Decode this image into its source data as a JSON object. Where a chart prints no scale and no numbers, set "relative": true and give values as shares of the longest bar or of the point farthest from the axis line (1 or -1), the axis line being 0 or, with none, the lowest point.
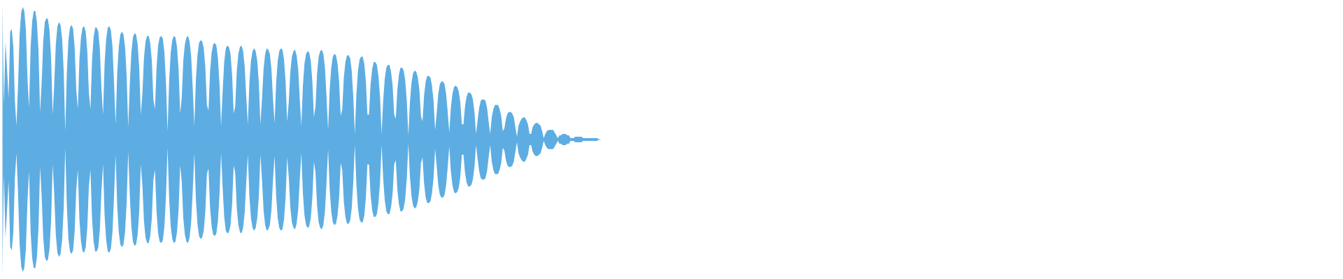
{
  "chart_data": {
    "type": "area",
    "relative": true,
    "categories": [
      null,
      null,
      null,
      null,
      null,
      null,
      null,
      null,
      null,
      null,
      null,
      null,
      null,
      null,
      null,
      null,
      null,
      null,
      null,
      null,
      null,
      null,
      null,
      null,
      null,
      null,
      null,
      null,
      null,
      null,
      null,
      null,
      null,
      null,
      null,
      null,
      null,
      null,
      null,
      null,
      null,
      null,
      null,
      null,
      null,
      null,
      null,
      null,
      null,
      null,
      null,
      null,
      null,
      null,
      null,
      null,
      null,
      null,
      null,
      null,
      null,
      null,
      null,
      null,
      null,
      null,
      null,
      null,
      null,
      null,
      null,
      null,
      null,
      null,
      null,
      null,
      null,
      null,
      null,
      null,
      null,
      null,
      null,
      null,
      null,
      null,
      null,
      null,
      null,
      null,
      null,
      null,
      null,
      null,
      null,
      null,
      null,
      null,
      null,
      null,
      null,
      null,
      null,
      null,
      null,
      null,
      null,
      null,
      null,
      null,
      null,
      null,
      null,
      null,
      null,
      null,
      null,
      null,
      null,
      null,
      null,
      null,
      null,
      null,
      null,
      null,
      null,
      null,
      null,
      null,
      null,
      null,
      null,
      null,
      null,
      null,
      null,
      null,
      null,
      null,
      null,
      null,
      null,
      null,
      null,
      null,
      null,
      null,
      null,
      null,
      null,
      null,
      null,
      null,
      null,
      null,
      null,
      null,
      null,
      null,
      null,
      null,
      null,
      null,
      null,
      null,
      null,
      null,
      null,
      null,
      null,
      null,
      null,
      null,
      null,
      null,
      null,
      null,
      null,
      null,
      null,
      null,
      null,
      null,
      null,
      null,
      null,
      null,
      null,
      null,
      null,
      null,
      null,
      null,
      null,
      null,
      null,
      null,
      null,
      null,
      null,
      null,
      null,
      null,
      null,
      null,
      null,
      null,
      null,
      null,
      null,
      null,
      null,
      null,
      null,
      null,
      null,
      null,
      null,
      null,
      null,
      null,
      null,
      null,
      null,
      null,
      null,
      null,
      null,
      null,
      null,
      null,
      null,
      null,
      null,
      null,
      null,
      null,
      null,
      null,
      null,
      null,
      null,
      null,
      null,
      null,
      null,
      null,
      null,
      null,
      null,
      null,
      null,
      null,
      null,
      null,
      null,
      null,
      null,
      null,
      null,
      null,
      null,
      null,
      null,
      null,
      null,
      null,
      null,
      null,
      null,
      null,
      null,
      null,
      null,
      null,
      null,
      null,
      null,
      null,
      null,
      null,
      null,
      null,
      null,
      null,
      null,
      null,
      null,
      null,
      null,
      null,
      null,
      null,
      null,
      null,
      null,
      null,
      null,
      null,
      null,
      null,
      null,
      null,
      null,
      null,
      null,
      null,
      null,
      null,
      null,
      null,
      null,
      null,
      null,
      null,
      null,
      null,
      null,
      null,
      null,
      null,
      null,
      null,
      null,
      null,
      null,
      null,
      null,
      null,
      null,
      null,
      null,
      null,
      null,
      null,
      null,
      null,
      null,
      null,
      null,
      null,
      null,
      null,
      null,
      null,
      null,
      null,
      null,
      null,
      null,
      null,
      null,
      null,
      null,
      null,
      null,
      null,
      null,
      null,
      null,
      null,
      null,
      null,
      null,
      null,
      null,
      null,
      null,
      null,
      null,
      null,
      null,
      null,
      null,
      null,
      null,
      null,
      null,
      null,
      null
    ],
    "ref_lines": [
      {
        "axis": "y",
        "value": 0,
        "color": "#5dade2"
      }
    ],
    "series": [
      {
        "color": "#5dade2",
        "values": [
          1,
          0.25,
          0.71,
          0.51,
          0.3,
          0.78,
          0.8,
          0.67,
          0.28,
          0.1,
          0.39,
          0.76,
          0.92,
          0.96,
          0.93,
          0.79,
          0.44,
          0.23,
          0.67,
          0.86,
          0.93,
          0.93,
          0.85,
          0.64,
          0.2,
          0.41,
          0.71,
          0.85,
          0.88,
          0.87,
          0.79,
          0.59,
          0.18,
          0.4,
          0.69,
          0.82,
          0.85,
          0.83,
          0.73,
          0.5,
          0.06,
          0.48,
          0.72,
          0.81,
          0.83,
          0.8,
          0.66,
          0.36,
          0.22,
          0.58,
          0.74,
          0.81,
          0.82,
          0.78,
          0.64,
          0.34,
          0.22,
          0.57,
          0.74,
          0.81,
          0.81,
          0.78,
          0.65,
          0.37,
          0.18,
          0.55,
          0.73,
          0.81,
          0.82,
          0.79,
          0.67,
          0.41,
          0.11,
          0.48,
          0.67,
          0.76,
          0.78,
          0.76,
          0.67,
          0.46,
          0.09,
          0.4,
          0.63,
          0.74,
          0.77,
          0.76,
          0.69,
          0.52,
          0.18,
          0.33,
          0.59,
          0.71,
          0.75,
          0.75,
          0.7,
          0.57,
          0.29,
          0.22,
          0.52,
          0.68,
          0.74,
          0.75,
          0.73,
          0.63,
          0.41,
          0.06,
          0.42,
          0.63,
          0.72,
          0.75,
          0.74,
          0.67,
          0.51,
          0.19,
          0.3,
          0.57,
          0.69,
          0.74,
          0.75,
          0.71,
          0.6,
          0.37,
          0.1,
          0.43,
          0.61,
          0.7,
          0.72,
          0.71,
          0.66,
          0.52,
          0.25,
          0.21,
          0.49,
          0.63,
          0.69,
          0.7,
          0.68,
          0.59,
          0.4,
          0.1,
          0.35,
          0.56,
          0.66,
          0.68,
          0.67,
          0.62,
          0.47,
          0.19,
          0.24,
          0.5,
          0.62,
          0.67,
          0.68,
          0.64,
          0.53,
          0.31,
          0.11,
          0.41,
          0.57,
          0.64,
          0.66,
          0.64,
          0.57,
          0.41,
          0.11,
          0.29,
          0.51,
          0.62,
          0.66,
          0.65,
          0.62,
          0.51,
          0.29,
          0.12,
          0.41,
          0.57,
          0.64,
          0.66,
          0.65,
          0.58,
          0.42,
          0.13,
          0.27,
          0.49,
          0.6,
          0.64,
          0.65,
          0.61,
          0.51,
          0.29,
          0.1,
          0.39,
          0.55,
          0.62,
          0.64,
          0.63,
          0.57,
          0.42,
          0.16,
          0.24,
          0.48,
          0.6,
          0.64,
          0.65,
          0.62,
          0.52,
          0.31,
          0.07,
          0.36,
          0.52,
          0.6,
          0.62,
          0.61,
          0.55,
          0.42,
          0.17,
          0.22,
          0.45,
          0.56,
          0.61,
          0.61,
          0.59,
          0.5,
          0.31,
          0.04,
          0.33,
          0.5,
          0.58,
          0.6,
          0.6,
          0.55,
          0.42,
          0.18,
          0.18,
          0.4,
          0.51,
          0.56,
          0.56,
          0.54,
          0.46,
          0.31,
          0.04,
          0.28,
          0.44,
          0.52,
          0.54,
          0.54,
          0.49,
          0.39,
          0.18,
          0.15,
          0.36,
          0.47,
          0.52,
          0.52,
          0.5,
          0.43,
          0.28,
          0.03,
          0.27,
          0.41,
          0.48,
          0.5,
          0.49,
          0.45,
          0.36,
          0.17,
          0.13,
          0.32,
          0.42,
          0.46,
          0.46,
          0.45,
          0.39,
          0.28,
          0.07,
          0.19,
          0.33,
          0.4,
          0.42,
          0.42,
          0.4,
          0.33,
          0.2,
          0.05,
          0.23,
          0.33,
          0.38,
          0.39,
          0.38,
          0.35,
          0.27,
          0.11,
          0.11,
          0.24,
          0.31,
          0.34,
          0.34,
          0.33,
          0.29,
          0.2,
          0.04,
          0.14,
          0.23,
          0.28,
          0.29,
          0.29,
          0.28,
          0.23,
          0.13,
          0.04,
          0.16,
          0.22,
          0.25,
          0.25,
          0.25,
          0.22,
          0.17,
          0.06,
          0.08,
          0.15,
          0.19,
          0.2,
          0.2,
          0.19,
          0.16,
          0.09,
          0.02,
          0.1,
          0.13,
          0.15,
          0.16,
          0.16,
          0.14,
          0.11,
          0.04,
          0.04,
          0.09,
          0.11,
          0.12,
          0.12,
          0.11,
          0.1,
          0.06,
          0.01,
          0.04,
          0.06,
          0.07,
          0.07,
          0.07,
          0.07,
          0.05,
          0.03,
          0.01,
          0.03,
          0.03,
          0.04,
          0.04,
          0.04,
          0.03,
          0.03,
          0.01,
          0.01,
          0.01,
          0.02,
          0.02,
          0.02,
          0.02,
          0.02,
          0.01,
          0.01,
          0.01,
          0.01,
          0.01,
          0.01,
          0.01,
          0.01,
          0.01,
          0.01,
          0,
          0
        ]
      },
      {
        "color": "#5dade2",
        "values": [
          -1,
          -0.25,
          -0.71,
          -0.51,
          -0.3,
          -0.78,
          -0.8,
          -0.67,
          -0.28,
          -0.1,
          -0.39,
          -0.76,
          -0.92,
          -0.96,
          -0.93,
          -0.79,
          -0.44,
          -0.23,
          -0.67,
          -0.86,
          -0.93,
          -0.93,
          -0.85,
          -0.64,
          -0.2,
          -0.41,
          -0.71,
          -0.85,
          -0.88,
          -0.87,
          -0.79,
          -0.59,
          -0.18,
          -0.4,
          -0.69,
          -0.82,
          -0.85,
          -0.83,
          -0.73,
          -0.5,
          -0.06,
          -0.48,
          -0.72,
          -0.81,
          -0.83,
          -0.8,
          -0.66,
          -0.36,
          -0.22,
          -0.58,
          -0.74,
          -0.81,
          -0.82,
          -0.78,
          -0.64,
          -0.34,
          -0.22,
          -0.57,
          -0.74,
          -0.81,
          -0.81,
          -0.78,
          -0.65,
          -0.37,
          -0.18,
          -0.55,
          -0.73,
          -0.81,
          -0.82,
          -0.79,
          -0.67,
          -0.41,
          -0.11,
          -0.48,
          -0.67,
          -0.76,
          -0.78,
          -0.76,
          -0.67,
          -0.46,
          -0.09,
          -0.4,
          -0.63,
          -0.74,
          -0.77,
          -0.76,
          -0.69,
          -0.52,
          -0.18,
          -0.33,
          -0.59,
          -0.71,
          -0.75,
          -0.75,
          -0.7,
          -0.57,
          -0.29,
          -0.22,
          -0.52,
          -0.68,
          -0.74,
          -0.75,
          -0.73,
          -0.63,
          -0.41,
          -0.06,
          -0.42,
          -0.63,
          -0.72,
          -0.75,
          -0.74,
          -0.67,
          -0.51,
          -0.19,
          -0.3,
          -0.57,
          -0.69,
          -0.74,
          -0.75,
          -0.71,
          -0.6,
          -0.37,
          -0.1,
          -0.43,
          -0.61,
          -0.7,
          -0.72,
          -0.71,
          -0.66,
          -0.52,
          -0.25,
          -0.21,
          -0.49,
          -0.63,
          -0.69,
          -0.7,
          -0.68,
          -0.59,
          -0.4,
          -0.1,
          -0.35,
          -0.56,
          -0.66,
          -0.68,
          -0.67,
          -0.62,
          -0.47,
          -0.19,
          -0.24,
          -0.5,
          -0.62,
          -0.67,
          -0.68,
          -0.64,
          -0.53,
          -0.31,
          -0.11,
          -0.41,
          -0.57,
          -0.64,
          -0.66,
          -0.64,
          -0.57,
          -0.41,
          -0.11,
          -0.29,
          -0.51,
          -0.62,
          -0.66,
          -0.65,
          -0.62,
          -0.51,
          -0.29,
          -0.12,
          -0.41,
          -0.57,
          -0.64,
          -0.66,
          -0.65,
          -0.58,
          -0.42,
          -0.13,
          -0.27,
          -0.49,
          -0.6,
          -0.64,
          -0.65,
          -0.61,
          -0.51,
          -0.29,
          -0.1,
          -0.39,
          -0.55,
          -0.62,
          -0.64,
          -0.63,
          -0.57,
          -0.42,
          -0.16,
          -0.24,
          -0.48,
          -0.6,
          -0.64,
          -0.65,
          -0.62,
          -0.52,
          -0.31,
          -0.07,
          -0.36,
          -0.52,
          -0.6,
          -0.62,
          -0.61,
          -0.55,
          -0.42,
          -0.17,
          -0.22,
          -0.45,
          -0.56,
          -0.61,
          -0.61,
          -0.59,
          -0.5,
          -0.31,
          -0.04,
          -0.33,
          -0.5,
          -0.58,
          -0.6,
          -0.6,
          -0.55,
          -0.42,
          -0.18,
          -0.18,
          -0.4,
          -0.51,
          -0.56,
          -0.56,
          -0.54,
          -0.46,
          -0.31,
          -0.04,
          -0.28,
          -0.44,
          -0.52,
          -0.54,
          -0.54,
          -0.49,
          -0.39,
          -0.18,
          -0.15,
          -0.36,
          -0.47,
          -0.52,
          -0.52,
          -0.5,
          -0.43,
          -0.28,
          -0.03,
          -0.27,
          -0.41,
          -0.48,
          -0.5,
          -0.49,
          -0.45,
          -0.36,
          -0.17,
          -0.13,
          -0.32,
          -0.42,
          -0.46,
          -0.46,
          -0.45,
          -0.39,
          -0.28,
          -0.07,
          -0.19,
          -0.33,
          -0.4,
          -0.42,
          -0.42,
          -0.4,
          -0.33,
          -0.2,
          -0.05,
          -0.23,
          -0.33,
          -0.38,
          -0.39,
          -0.38,
          -0.35,
          -0.27,
          -0.11,
          -0.11,
          -0.24,
          -0.31,
          -0.34,
          -0.34,
          -0.33,
          -0.29,
          -0.2,
          -0.04,
          -0.14,
          -0.23,
          -0.28,
          -0.29,
          -0.29,
          -0.28,
          -0.23,
          -0.13,
          -0.04,
          -0.16,
          -0.22,
          -0.25,
          -0.25,
          -0.25,
          -0.22,
          -0.17,
          -0.06,
          -0.08,
          -0.15,
          -0.19,
          -0.2,
          -0.2,
          -0.19,
          -0.16,
          -0.09,
          -0.02,
          -0.1,
          -0.13,
          -0.15,
          -0.16,
          -0.16,
          -0.14,
          -0.11,
          -0.04,
          -0.04,
          -0.09,
          -0.11,
          -0.12,
          -0.12,
          -0.11,
          -0.1,
          -0.06,
          -0.01,
          -0.04,
          -0.06,
          -0.07,
          -0.07,
          -0.07,
          -0.07,
          -0.05,
          -0.03,
          -0.01,
          -0.03,
          -0.03,
          -0.04,
          -0.04,
          -0.04,
          -0.03,
          -0.03,
          -0.01,
          -0.01,
          -0.01,
          -0.02,
          -0.02,
          -0.02,
          -0.02,
          -0.02,
          -0.01,
          -0.01,
          -0.01,
          -0.01,
          -0.01,
          -0.01,
          -0.01,
          -0.01,
          -0.01,
          -0.01,
          0,
          0
        ]
      }
    ]
  }
}
